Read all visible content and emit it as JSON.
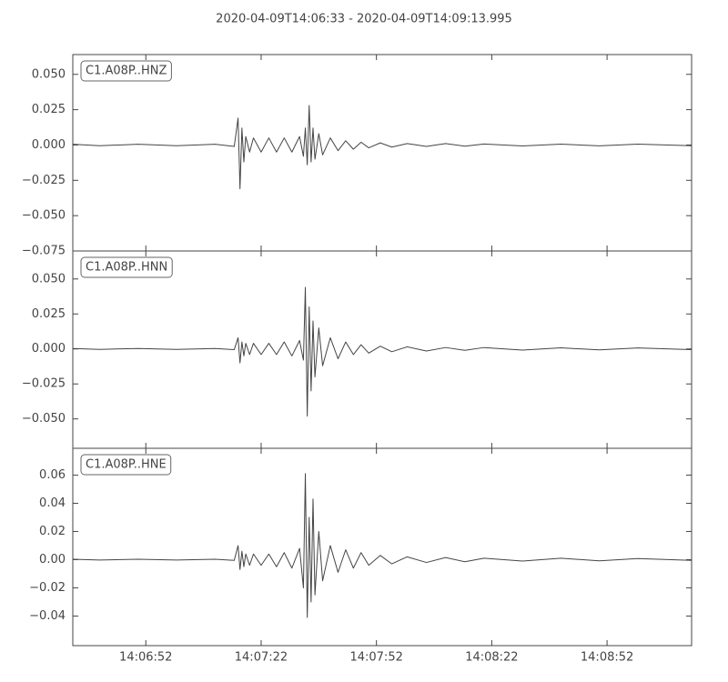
{
  "title": "2020-04-09T14:06:33  -  2020-04-09T14:09:13.995",
  "chart_data": [
    {
      "type": "line",
      "label": "C1.A08P..HNZ",
      "color": "#444444",
      "x": [
        50793,
        50800,
        50810,
        50820,
        50830,
        50835,
        50836,
        50836.5,
        50837,
        50837.5,
        50838,
        50839,
        50840,
        50842,
        50844,
        50846,
        50848,
        50850,
        50852,
        50853,
        50853.5,
        50854,
        50854.5,
        50855,
        50855.5,
        50856,
        50857,
        50858,
        50860,
        50862,
        50864,
        50866,
        50868,
        50870,
        50873,
        50876,
        50880,
        50885,
        50890,
        50895,
        50900,
        50910,
        50920,
        50930,
        50940,
        50953.995
      ],
      "values": [
        0.0005,
        -0.0005,
        0.0005,
        -0.0005,
        0.0005,
        -0.001,
        0.019,
        -0.031,
        0.012,
        -0.012,
        0.006,
        -0.005,
        0.005,
        -0.005,
        0.005,
        -0.005,
        0.005,
        -0.005,
        0.006,
        -0.008,
        0.012,
        -0.014,
        0.028,
        -0.012,
        0.012,
        -0.01,
        0.008,
        -0.007,
        0.005,
        -0.004,
        0.003,
        -0.003,
        0.002,
        -0.002,
        0.0015,
        -0.0015,
        0.001,
        -0.001,
        0.001,
        -0.0008,
        0.0007,
        -0.0007,
        0.0006,
        -0.0006,
        0.0006,
        -0.0005
      ],
      "xlim": [
        50793,
        50953.995
      ],
      "ylim": [
        -0.075,
        0.064
      ],
      "yticks": [
        {
          "value": -0.075,
          "label": "−0.075"
        },
        {
          "value": -0.05,
          "label": "−0.050"
        },
        {
          "value": -0.025,
          "label": "−0.025"
        },
        {
          "value": 0,
          "label": "0.000"
        },
        {
          "value": 0.025,
          "label": "0.025"
        },
        {
          "value": 0.05,
          "label": "0.050"
        }
      ]
    },
    {
      "type": "line",
      "label": "C1.A08P..HNN",
      "color": "#444444",
      "x": [
        50793,
        50800,
        50810,
        50820,
        50830,
        50835,
        50836,
        50836.5,
        50837,
        50837.5,
        50838,
        50839,
        50840,
        50842,
        50844,
        50846,
        50848,
        50850,
        50852,
        50853,
        50853.5,
        50854,
        50854.5,
        50855,
        50855.5,
        50856,
        50857,
        50858,
        50860,
        50862,
        50864,
        50866,
        50868,
        50870,
        50873,
        50876,
        50880,
        50885,
        50890,
        50895,
        50900,
        50910,
        50920,
        50930,
        50940,
        50953.995
      ],
      "values": [
        0.0003,
        -0.0003,
        0.0003,
        -0.0003,
        0.0003,
        -0.0005,
        0.008,
        -0.01,
        0.005,
        -0.005,
        0.004,
        -0.004,
        0.004,
        -0.004,
        0.004,
        -0.004,
        0.005,
        -0.005,
        0.006,
        -0.008,
        0.044,
        -0.048,
        0.03,
        -0.03,
        0.02,
        -0.02,
        0.015,
        -0.012,
        0.008,
        -0.007,
        0.005,
        -0.004,
        0.003,
        -0.003,
        0.002,
        -0.002,
        0.0015,
        -0.0015,
        0.001,
        -0.001,
        0.001,
        -0.0008,
        0.0008,
        -0.0007,
        0.0007,
        -0.0005
      ],
      "xlim": [
        50793,
        50953.995
      ],
      "ylim": [
        -0.071,
        0.07
      ],
      "yticks": [
        {
          "value": -0.05,
          "label": "−0.050"
        },
        {
          "value": -0.025,
          "label": "−0.025"
        },
        {
          "value": 0,
          "label": "0.000"
        },
        {
          "value": 0.025,
          "label": "0.025"
        },
        {
          "value": 0.05,
          "label": "0.050"
        }
      ]
    },
    {
      "type": "line",
      "label": "C1.A08P..HNE",
      "color": "#444444",
      "x": [
        50793,
        50800,
        50810,
        50820,
        50830,
        50835,
        50836,
        50836.5,
        50837,
        50837.5,
        50838,
        50839,
        50840,
        50842,
        50844,
        50846,
        50848,
        50850,
        50852,
        50853,
        50853.5,
        50854,
        50854.5,
        50855,
        50855.5,
        50856,
        50857,
        50858,
        50860,
        50862,
        50864,
        50866,
        50868,
        50870,
        50873,
        50876,
        50880,
        50885,
        50890,
        50895,
        50900,
        50910,
        50920,
        50930,
        50940,
        50953.995
      ],
      "values": [
        0.0003,
        -0.0003,
        0.0003,
        -0.0003,
        0.0003,
        -0.0005,
        0.01,
        -0.007,
        0.006,
        -0.005,
        0.004,
        -0.004,
        0.004,
        -0.004,
        0.004,
        -0.005,
        0.005,
        -0.006,
        0.008,
        -0.02,
        0.061,
        -0.041,
        0.03,
        -0.03,
        0.043,
        -0.025,
        0.02,
        -0.015,
        0.01,
        -0.009,
        0.007,
        -0.006,
        0.005,
        -0.004,
        0.003,
        -0.003,
        0.002,
        -0.002,
        0.0015,
        -0.0015,
        0.001,
        -0.001,
        0.001,
        -0.0008,
        0.0008,
        -0.0005
      ],
      "xlim": [
        50793,
        50953.995
      ],
      "ylim": [
        -0.061,
        0.079
      ],
      "yticks": [
        {
          "value": -0.04,
          "label": "−0.04"
        },
        {
          "value": -0.02,
          "label": "−0.02"
        },
        {
          "value": 0,
          "label": "0.00"
        },
        {
          "value": 0.02,
          "label": "0.02"
        },
        {
          "value": 0.04,
          "label": "0.04"
        },
        {
          "value": 0.06,
          "label": "0.06"
        }
      ],
      "xticks": [
        {
          "value": 50812,
          "label": "14:06:52"
        },
        {
          "value": 50842,
          "label": "14:07:22"
        },
        {
          "value": 50872,
          "label": "14:07:52"
        },
        {
          "value": 50902,
          "label": "14:08:22"
        },
        {
          "value": 50932,
          "label": "14:08:52"
        }
      ]
    }
  ]
}
